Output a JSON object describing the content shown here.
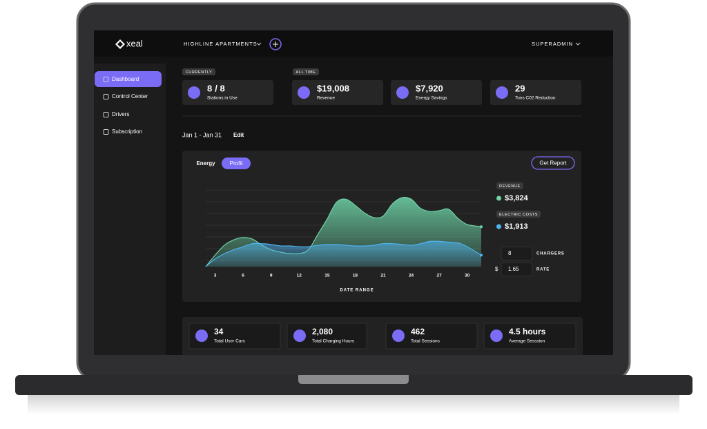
{
  "brand": "xeal",
  "property": "HIGHLINE APARTMENTS",
  "user": "SUPERADMIN",
  "nav": [
    "Dashboard",
    "Control Center",
    "Drivers",
    "Subscription"
  ],
  "tags": {
    "currently": "CURRENTLY",
    "all_time": "ALL TIME"
  },
  "stats": [
    {
      "value": "8",
      "extra": "/ 8",
      "label": "Stations in Use"
    },
    {
      "value": "$19,008",
      "label": "Revenue"
    },
    {
      "value": "$7,920",
      "label": "Energy Savings"
    },
    {
      "value": "29",
      "label": "Tons C02 Reduction"
    }
  ],
  "date_range": "Jan 1 - Jan 31",
  "edit": "Edit",
  "tabs": [
    "Energy",
    "Profit"
  ],
  "report_button": "Get Report",
  "chart_data": {
    "type": "area",
    "x_label": "DATE RANGE",
    "x": [
      2,
      3,
      4,
      5,
      6,
      7,
      8,
      9,
      10,
      11,
      12,
      13,
      14,
      15,
      16,
      17,
      18,
      19,
      20,
      21,
      22,
      23,
      24,
      25,
      26,
      27,
      28,
      29,
      30,
      31.5
    ],
    "xlim": [
      2,
      31.5
    ],
    "xticks": [
      3,
      6,
      9,
      12,
      15,
      18,
      21,
      24,
      27,
      30
    ],
    "ylim": [
      0,
      100
    ],
    "grid": true,
    "series": [
      {
        "name": "REVENUE",
        "total": "$3,824",
        "color": "#6fd6a9",
        "values": [
          0,
          15,
          28,
          35,
          38,
          36,
          28,
          22,
          19,
          17,
          17,
          22,
          42,
          62,
          84,
          88,
          80,
          70,
          64,
          66,
          82,
          90,
          88,
          76,
          72,
          73,
          75,
          63,
          55,
          52
        ]
      },
      {
        "name": "ELECTRIC COSTS",
        "total": "$1,913",
        "color": "#4fb3ef",
        "values": [
          0,
          10,
          17,
          22,
          26,
          30,
          30,
          29,
          27,
          27,
          26,
          26,
          28,
          29,
          29,
          28,
          27,
          27,
          28,
          30,
          30,
          29,
          28,
          30,
          33,
          33,
          32,
          31,
          26,
          15
        ]
      }
    ]
  },
  "inputs": [
    {
      "value": "8",
      "label": "CHARGERS"
    },
    {
      "prefix": "$",
      "value": "1.65",
      "label": "RATE"
    }
  ],
  "totals": [
    {
      "value": "34",
      "label": "Total User Cars"
    },
    {
      "value": "2,080",
      "label": "Total Charging Hours"
    },
    {
      "value": "462",
      "label": "Total Sessions"
    },
    {
      "value": "4.5 hours",
      "label": "Average Sesssion"
    }
  ]
}
